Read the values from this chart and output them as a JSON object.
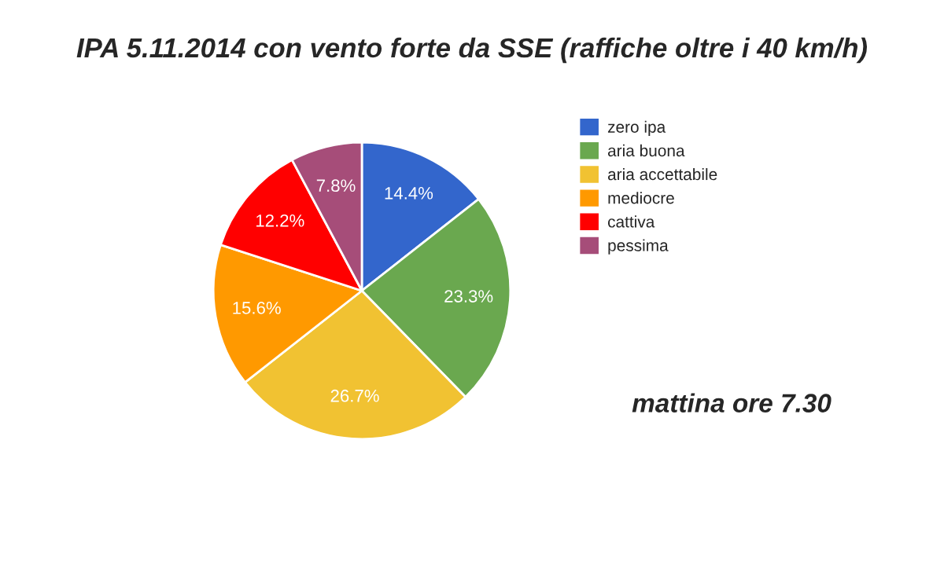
{
  "chart_data": {
    "type": "pie",
    "title": "IPA 5.11.2014 con vento forte da SSE (raffiche oltre i 40 km/h)",
    "categories": [
      "zero ipa",
      "aria buona",
      "aria accettabile",
      "mediocre",
      "cattiva",
      "pessima"
    ],
    "values": [
      14.4,
      23.3,
      26.7,
      15.6,
      12.2,
      7.8
    ],
    "colors": [
      "#3366cc",
      "#6aa84f",
      "#f1c232",
      "#ff9900",
      "#ff0000",
      "#a64d79"
    ],
    "value_labels": [
      "14.4%",
      "23.3%",
      "26.7%",
      "15.6%",
      "12.2%",
      "7.8%"
    ],
    "legend": "right",
    "annotations": [
      "mattina ore 7.30"
    ]
  }
}
